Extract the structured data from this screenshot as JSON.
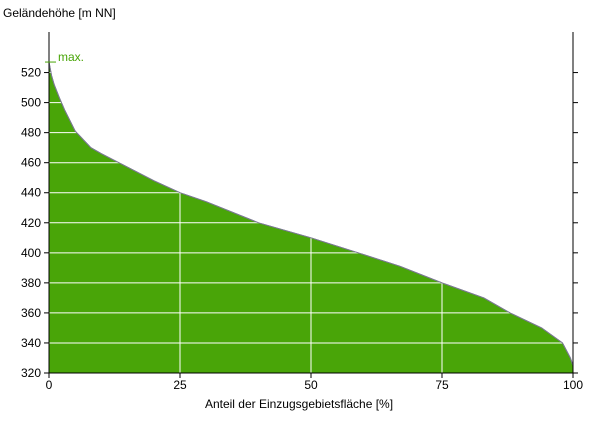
{
  "chart_data": {
    "type": "area",
    "ylabel": "Geländehöhe [m NN]",
    "xlabel": "Anteil der Einzugsgebietsfläche [%]",
    "xlim": [
      0,
      100
    ],
    "ylim": [
      320,
      547
    ],
    "xticks": [
      0,
      25,
      50,
      75,
      100
    ],
    "yticks": [
      320,
      340,
      360,
      380,
      400,
      420,
      440,
      460,
      480,
      500,
      520
    ],
    "grid": true,
    "max_label": "max.",
    "max_value": 527,
    "x": [
      0,
      0.5,
      1,
      2,
      3,
      5,
      8,
      10,
      15,
      20,
      25,
      30,
      40,
      50,
      59,
      67,
      75,
      83,
      88,
      94,
      96,
      98,
      99.5,
      100
    ],
    "y": [
      527,
      518,
      512,
      503,
      495,
      481,
      470,
      466,
      457,
      448,
      440,
      434,
      420,
      410,
      400,
      391,
      380,
      370,
      360,
      350,
      345,
      340,
      330,
      325
    ],
    "colors": {
      "fill": "#49a508",
      "outline": "#7a7a90",
      "max": "#49a508",
      "grid": "#ffffff"
    }
  }
}
